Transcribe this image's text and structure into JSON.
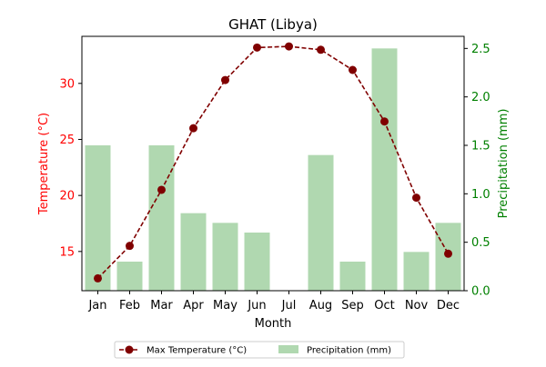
{
  "chart_data": {
    "type": "bar+line",
    "title": "GHAT (Libya)",
    "xlabel": "Month",
    "categories": [
      "Jan",
      "Feb",
      "Mar",
      "Apr",
      "May",
      "Jun",
      "Jul",
      "Aug",
      "Sep",
      "Oct",
      "Nov",
      "Dec"
    ],
    "left_axis": {
      "label": "Temperature (°C)",
      "color": "#ff0000",
      "ylim": [
        11.5,
        34.2
      ],
      "ticks": [
        15,
        20,
        25,
        30
      ]
    },
    "right_axis": {
      "label": "Precipitation (mm)",
      "color": "#008000",
      "ylim": [
        0,
        2.625
      ],
      "ticks": [
        "0.0",
        "0.5",
        "1.0",
        "1.5",
        "2.0",
        "2.5"
      ]
    },
    "series": [
      {
        "name": "Max Temperature (°C)",
        "kind": "line",
        "axis": "left",
        "color": "#800000",
        "values": [
          12.6,
          15.5,
          20.5,
          26.0,
          30.3,
          33.2,
          33.3,
          33.0,
          31.2,
          26.6,
          19.8,
          14.8
        ]
      },
      {
        "name": "Precipitation (mm)",
        "kind": "bar",
        "axis": "right",
        "color": "#b0d8b0",
        "values": [
          1.5,
          0.3,
          1.5,
          0.8,
          0.7,
          0.6,
          0.0,
          1.4,
          0.3,
          2.5,
          0.4,
          0.7
        ]
      }
    ],
    "legend": {
      "placement": "bottom-center",
      "entries": [
        "Max Temperature (°C)",
        "Precipitation (mm)"
      ]
    },
    "grid": false
  }
}
